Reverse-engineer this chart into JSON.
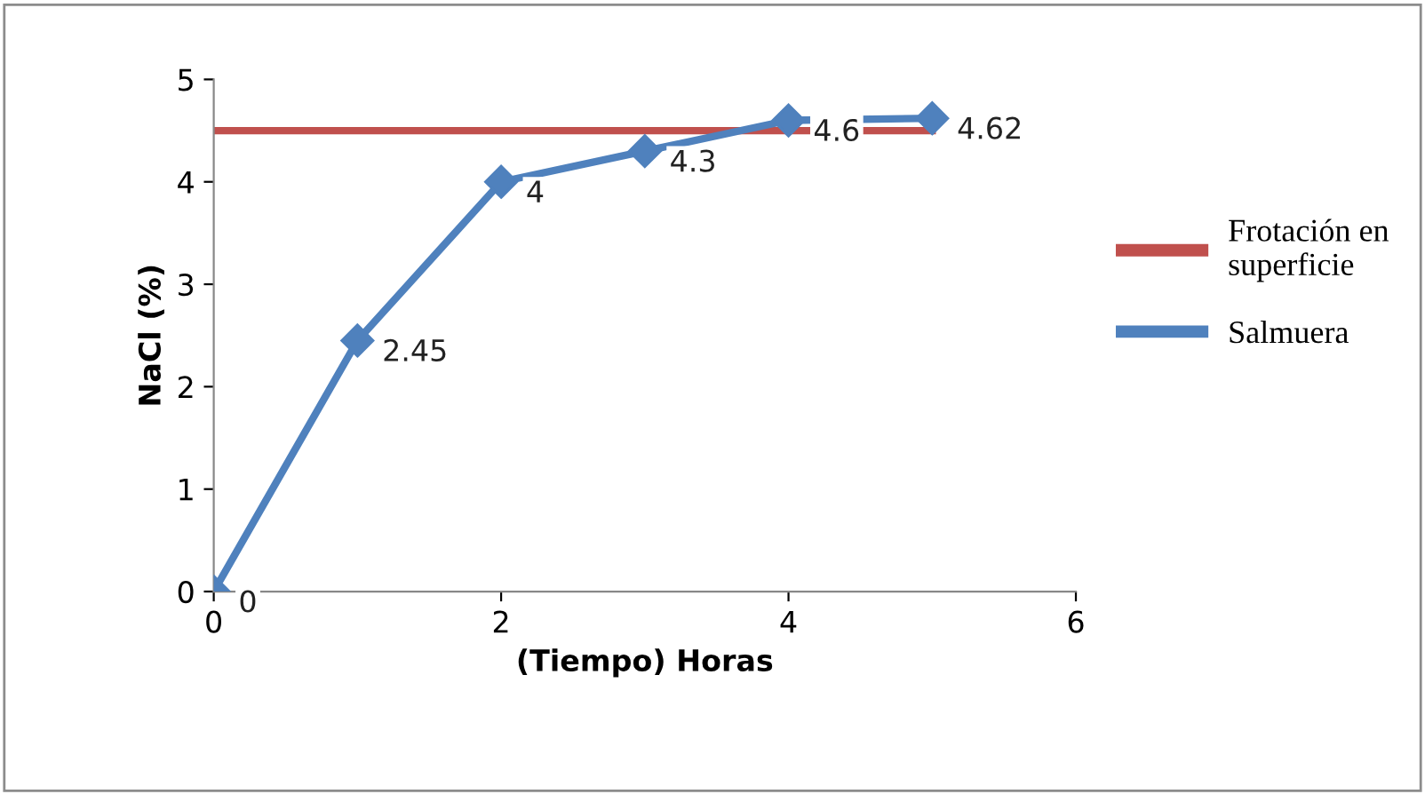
{
  "chart_data": {
    "type": "line",
    "xlabel": "(Tiempo) Horas",
    "ylabel": "NaCl (%)",
    "xlim": [
      0,
      6
    ],
    "xticks": [
      0,
      2,
      4,
      6
    ],
    "ylim": [
      0,
      5
    ],
    "yticks": [
      0,
      1,
      2,
      3,
      4,
      5
    ],
    "grid": false,
    "legend": "right",
    "series": [
      {
        "name": "Frotación en superficie",
        "color": "#c0504d",
        "x": [
          0,
          5
        ],
        "values": [
          4.5,
          4.5
        ],
        "marker": "none"
      },
      {
        "name": "Salmuera",
        "color": "#4f81bd",
        "x": [
          0,
          1,
          2,
          3,
          4,
          5
        ],
        "values": [
          0,
          2.45,
          4,
          4.3,
          4.6,
          4.62
        ],
        "marker": "diamond",
        "value_labels": [
          "0",
          "2.45",
          "4",
          "4.3",
          "4.6",
          "4.62"
        ]
      }
    ]
  }
}
